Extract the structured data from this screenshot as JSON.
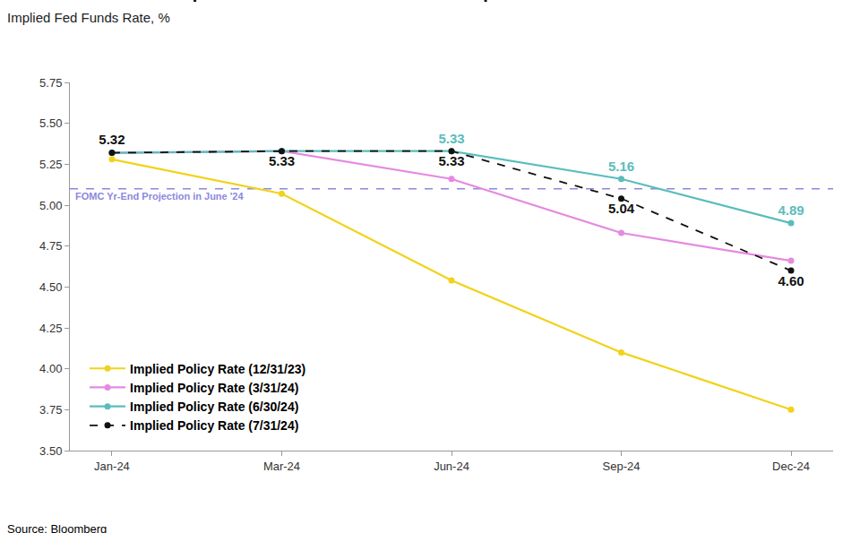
{
  "chart_data": {
    "type": "line",
    "title": "Mild June Inflation Report Bolstered Market Rate Cut Expectations",
    "subtitle": "Implied Fed Funds Rate, %",
    "source": "Source: Bloomberg",
    "categories": [
      "Jan-24",
      "Mar-24",
      "Jun-24",
      "Sep-24",
      "Dec-24"
    ],
    "series": [
      {
        "name": "Implied Policy Rate (12/31/23)",
        "color": "#f2d21a",
        "marker": "circle",
        "line_style": "solid",
        "values": [
          5.28,
          5.07,
          4.54,
          4.1,
          3.75
        ]
      },
      {
        "name": "Implied Policy Rate (3/31/24)",
        "color": "#e58ae0",
        "marker": "circle",
        "line_style": "solid",
        "values": [
          5.32,
          5.33,
          5.16,
          4.83,
          4.66
        ]
      },
      {
        "name": "Implied Policy Rate (6/30/24)",
        "color": "#5bbcbc",
        "marker": "circle",
        "line_style": "solid",
        "data_labels": true,
        "values": [
          5.32,
          5.33,
          5.33,
          5.16,
          4.89
        ],
        "value_labels": [
          null,
          null,
          "5.33",
          "5.16",
          "4.89"
        ]
      },
      {
        "name": "Implied Policy Rate (7/31/24)",
        "color": "#111111",
        "marker": "circle",
        "line_style": "dashed",
        "data_labels": true,
        "values": [
          5.32,
          5.33,
          5.33,
          5.04,
          4.6
        ],
        "value_labels": [
          "5.32",
          "5.33",
          "5.33",
          "5.04",
          "4.60"
        ]
      }
    ],
    "reference_lines": [
      {
        "value": 5.1,
        "label": "FOMC Yr-End Projection in June '24",
        "color": "#8c88e0",
        "line_style": "dashed"
      }
    ],
    "ylim": [
      3.5,
      5.75
    ],
    "yticks": [
      {
        "value": 3.5,
        "label": "3.50"
      },
      {
        "value": 3.75,
        "label": "3.75"
      },
      {
        "value": 4,
        "label": "4.00"
      },
      {
        "value": 4.25,
        "label": "4.25"
      },
      {
        "value": 4.5,
        "label": "4.50"
      },
      {
        "value": 4.75,
        "label": "4.75"
      },
      {
        "value": 5,
        "label": "5.00"
      },
      {
        "value": 5.25,
        "label": "5.25"
      },
      {
        "value": 5.5,
        "label": "5.50"
      },
      {
        "value": 5.75,
        "label": "5.75"
      }
    ],
    "grid": false,
    "legend": "lower left"
  }
}
